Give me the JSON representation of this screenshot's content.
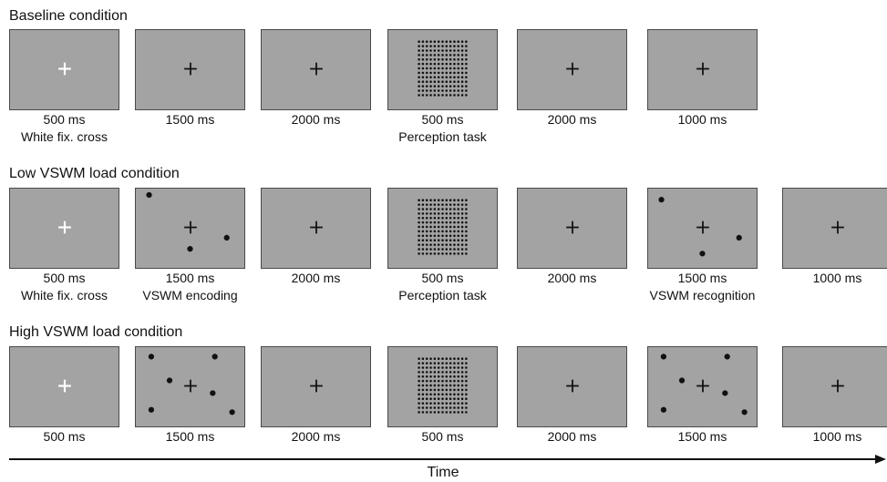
{
  "conditions": [
    {
      "title": "Baseline condition",
      "frames": [
        {
          "fixation": "white",
          "dots": [],
          "grid": false,
          "caption": [
            "500 ms",
            "White fix. cross"
          ]
        },
        {
          "fixation": "black",
          "dots": [],
          "grid": false,
          "caption": [
            "1500 ms"
          ]
        },
        {
          "fixation": "black",
          "dots": [],
          "grid": false,
          "caption": [
            "2000 ms"
          ]
        },
        {
          "fixation": "none",
          "dots": [],
          "grid": true,
          "caption": [
            "500 ms",
            "Perception task"
          ]
        },
        {
          "fixation": "black",
          "dots": [],
          "grid": false,
          "caption": [
            "2000 ms"
          ]
        },
        {
          "fixation": "black",
          "dots": [],
          "grid": false,
          "caption": [
            "1000 ms"
          ]
        }
      ]
    },
    {
      "title": "Low VSWM load condition",
      "frames": [
        {
          "fixation": "white",
          "dots": [],
          "grid": false,
          "caption": [
            "500 ms",
            "White fix. cross"
          ]
        },
        {
          "fixation": "black",
          "dots": [
            [
              0.12,
              0.08
            ],
            [
              0.5,
              0.76
            ],
            [
              0.84,
              0.62
            ]
          ],
          "grid": false,
          "caption": [
            "1500 ms",
            "VSWM encoding"
          ]
        },
        {
          "fixation": "black",
          "dots": [],
          "grid": false,
          "caption": [
            "2000 ms"
          ]
        },
        {
          "fixation": "none",
          "dots": [],
          "grid": true,
          "caption": [
            "500 ms",
            "Perception task"
          ]
        },
        {
          "fixation": "black",
          "dots": [],
          "grid": false,
          "caption": [
            "2000 ms"
          ]
        },
        {
          "fixation": "black",
          "dots": [
            [
              0.12,
              0.14
            ],
            [
              0.5,
              0.82
            ],
            [
              0.84,
              0.62
            ]
          ],
          "grid": false,
          "caption": [
            "1500 ms",
            "VSWM recognition"
          ]
        },
        {
          "fixation": "black",
          "dots": [],
          "grid": false,
          "caption": [
            "1000 ms"
          ]
        }
      ]
    },
    {
      "title": "High VSWM load condition",
      "frames": [
        {
          "fixation": "white",
          "dots": [],
          "grid": false,
          "caption": [
            "500 ms"
          ]
        },
        {
          "fixation": "black",
          "dots": [
            [
              0.14,
              0.12
            ],
            [
              0.73,
              0.12
            ],
            [
              0.31,
              0.42
            ],
            [
              0.71,
              0.58
            ],
            [
              0.14,
              0.79
            ],
            [
              0.89,
              0.82
            ]
          ],
          "grid": false,
          "caption": [
            "1500 ms"
          ]
        },
        {
          "fixation": "black",
          "dots": [],
          "grid": false,
          "caption": [
            "2000 ms"
          ]
        },
        {
          "fixation": "none",
          "dots": [],
          "grid": true,
          "caption": [
            "500 ms"
          ]
        },
        {
          "fixation": "black",
          "dots": [],
          "grid": false,
          "caption": [
            "2000 ms"
          ]
        },
        {
          "fixation": "black",
          "dots": [
            [
              0.14,
              0.12
            ],
            [
              0.73,
              0.12
            ],
            [
              0.31,
              0.42
            ],
            [
              0.71,
              0.58
            ],
            [
              0.14,
              0.79
            ],
            [
              0.89,
              0.82
            ]
          ],
          "grid": false,
          "caption": [
            "1500 ms"
          ]
        },
        {
          "fixation": "black",
          "dots": [],
          "grid": false,
          "caption": [
            "1000 ms"
          ]
        }
      ]
    }
  ],
  "time_axis": {
    "label": "Time"
  },
  "colors": {
    "screen_bg": "#a3a3a3",
    "screen_border": "#4a4a4a",
    "fixation_white": "#ffffff",
    "fixation_black": "#111111",
    "dot": "#111111"
  }
}
